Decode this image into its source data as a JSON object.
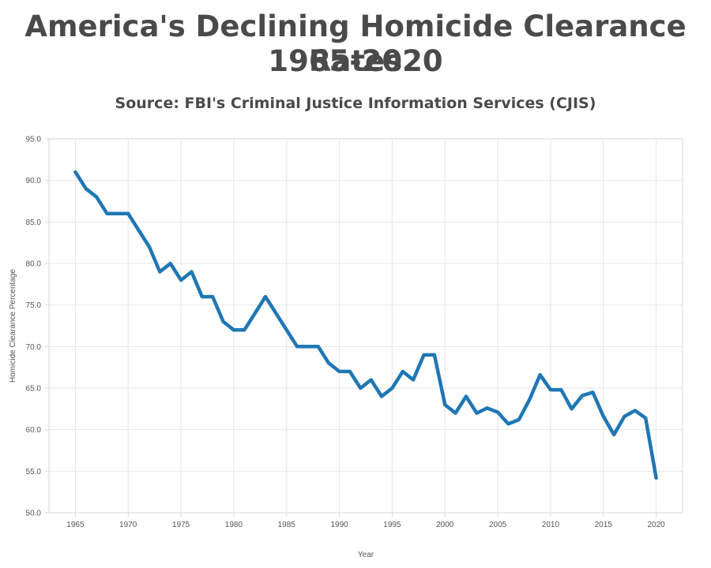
{
  "header": {
    "title_line1": "America's Declining Homicide Clearance Rates",
    "title_line2": "1965-2020",
    "subtitle": "Source: FBI's Criminal Justice Information Services (CJIS)"
  },
  "colors": {
    "line": "#1f77b4",
    "grid": "#e6e6e6",
    "axis": "#d9d9d9",
    "text": "#4a4a4a",
    "tick_text": "#555555"
  },
  "chart_data": {
    "type": "line",
    "title": "America's Declining Homicide Clearance Rates 1965-2020",
    "subtitle": "Source: FBI's Criminal Justice Information Services (CJIS)",
    "xlabel": "Year",
    "ylabel": "Homicide Clearance Percentage",
    "xlim": [
      1962.5,
      2022.5
    ],
    "ylim": [
      50,
      95
    ],
    "grid": true,
    "x_ticks": [
      1965,
      1970,
      1975,
      1980,
      1985,
      1990,
      1995,
      2000,
      2005,
      2010,
      2015,
      2020
    ],
    "x_tick_labels": [
      "1965",
      "1970",
      "1975",
      "1980",
      "1985",
      "1990",
      "1995",
      "2000",
      "2005",
      "2010",
      "2015",
      "2020"
    ],
    "y_ticks": [
      50,
      55,
      60,
      65,
      70,
      75,
      80,
      85,
      90,
      95
    ],
    "y_tick_labels": [
      "50.0",
      "55.0",
      "60.0",
      "65.0",
      "70.0",
      "75.0",
      "80.0",
      "85.0",
      "90.0",
      "95.0"
    ],
    "series": [
      {
        "x": [
          1965,
          1966,
          1967,
          1968,
          1969,
          1970,
          1971,
          1972,
          1973,
          1974,
          1975,
          1976,
          1977,
          1978,
          1979,
          1980,
          1981,
          1982,
          1983,
          1984,
          1985,
          1986,
          1987,
          1988,
          1989,
          1990,
          1991,
          1992,
          1993,
          1994,
          1995,
          1996,
          1997,
          1998,
          1999,
          2000,
          2001,
          2002,
          2003,
          2004,
          2005,
          2006,
          2007,
          2008,
          2009,
          2010,
          2011,
          2012,
          2013,
          2014,
          2015,
          2016,
          2017,
          2018,
          2019,
          2020
        ],
        "values": [
          91,
          89,
          88,
          86,
          86,
          86,
          84,
          82,
          79,
          80,
          78,
          79,
          76,
          76,
          73,
          72,
          72,
          74,
          76,
          74,
          72,
          70,
          70,
          70,
          68,
          67,
          67,
          65,
          66,
          64,
          65,
          67,
          66,
          69,
          69,
          63,
          62,
          64,
          62,
          62.6,
          62.1,
          60.7,
          61.2,
          63.6,
          66.6,
          64.8,
          64.8,
          62.5,
          64.1,
          64.5,
          61.6,
          59.4,
          61.6,
          62.3,
          61.4,
          54.2
        ]
      }
    ]
  }
}
